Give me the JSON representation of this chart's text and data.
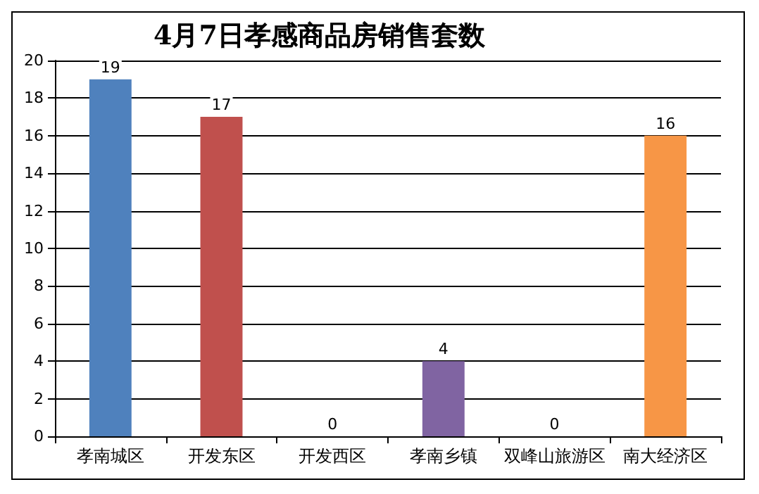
{
  "chart_data": {
    "type": "bar",
    "title": "4月7日孝感商品房销售套数",
    "categories": [
      "孝南城区",
      "开发东区",
      "开发西区",
      "孝南乡镇",
      "双峰山旅游区",
      "南大经济区"
    ],
    "values": [
      19,
      17,
      0,
      4,
      0,
      16
    ],
    "colors": [
      "#4f81bd",
      "#c0504d",
      "#9bbb59",
      "#8064a2",
      "#4bacc6",
      "#f79646"
    ],
    "ylim": [
      0,
      20
    ],
    "yticks": [
      0,
      2,
      4,
      6,
      8,
      10,
      12,
      14,
      16,
      18,
      20
    ],
    "grid": "y",
    "data_labels": true
  }
}
